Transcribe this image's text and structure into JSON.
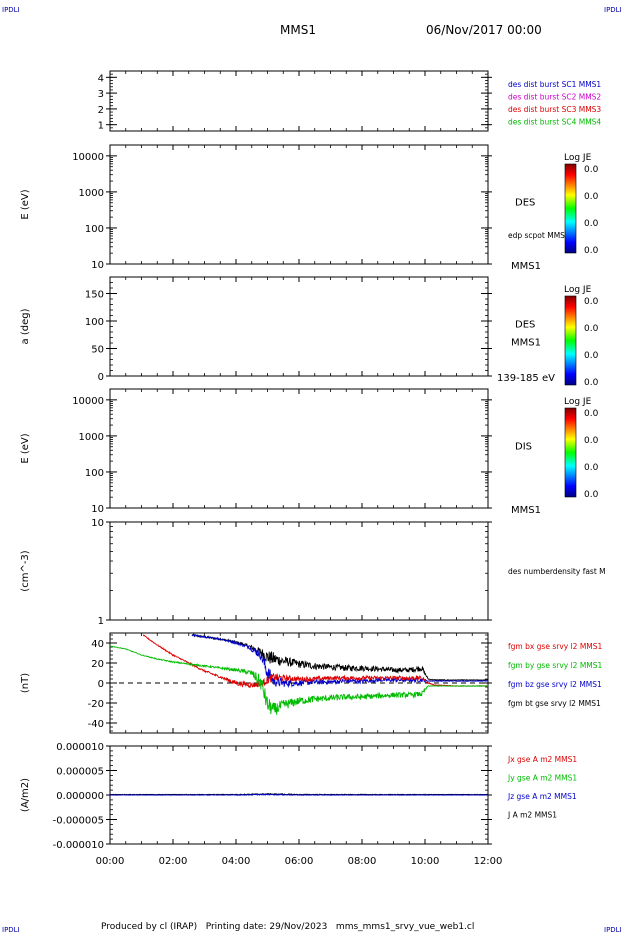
{
  "header": {
    "corner_left": "IPDLI",
    "corner_right": "IPDLI",
    "spacecraft": "MMS1",
    "datetime": "06/Nov/2017 00:00",
    "footer_text": "Produced by cl (IRAP)   Printing date: 29/Nov/2023   mms_mms1_srvy_vue_web1.cl",
    "footer_left": "IPDLI",
    "footer_right": "IPDLI"
  },
  "chart_data": [
    {
      "type": "line",
      "panel": "spacecraft-separation",
      "ylabel": "",
      "ylim": [
        0.6,
        4.4
      ],
      "yticks": [
        "1",
        "2",
        "3",
        "4"
      ],
      "legend": [
        {
          "name": "des dist burst SC1 MMS1",
          "color": "#0000cc"
        },
        {
          "name": "des dist burst SC2 MMS2",
          "color": "#cc00cc"
        },
        {
          "name": "des dist burst SC3 MMS3",
          "color": "#dd0000"
        },
        {
          "name": "des dist burst SC4 MMS4",
          "color": "#00bb00"
        }
      ]
    },
    {
      "type": "heatmap",
      "panel": "des-energy",
      "ylabel": "E (eV)",
      "yscale": "log",
      "ylim": [
        10,
        20000
      ],
      "yticks": [
        "10",
        "100",
        "1000",
        "10000"
      ],
      "right_label": "DES",
      "right_label2": "edp scpot MMS1",
      "right_bottom": "MMS1",
      "colorbar": {
        "title": "Log JE",
        "ticks": [
          "0.0",
          "0.0",
          "0.0",
          "0.0"
        ]
      }
    },
    {
      "type": "heatmap",
      "panel": "des-pitch",
      "ylabel": "a (deg)",
      "ylim": [
        0,
        180
      ],
      "yticks": [
        "0",
        "50",
        "100",
        "150"
      ],
      "right_label": "DES",
      "right_label2": "MMS1",
      "right_bottom": "139-185 eV",
      "colorbar": {
        "title": "Log JE",
        "ticks": [
          "0.0",
          "0.0",
          "0.0",
          "0.0"
        ]
      }
    },
    {
      "type": "heatmap",
      "panel": "dis-energy",
      "ylabel": "E (eV)",
      "yscale": "log",
      "ylim": [
        10,
        20000
      ],
      "yticks": [
        "10",
        "100",
        "1000",
        "10000"
      ],
      "right_label": "DIS",
      "right_bottom": "MMS1",
      "colorbar": {
        "title": "Log JE",
        "ticks": [
          "0.0",
          "0.0",
          "0.0",
          "0.0"
        ]
      }
    },
    {
      "type": "line",
      "panel": "density",
      "ylabel": "(cm^-3)",
      "yscale": "log",
      "ylim": [
        1,
        10
      ],
      "yticks": [
        "1",
        "10"
      ],
      "legend": [
        {
          "name": "des numberdensity fast M",
          "color": "#000000"
        }
      ]
    },
    {
      "type": "line",
      "panel": "magnetic-field",
      "ylabel": "(nT)",
      "ylim": [
        -50,
        50
      ],
      "yticks": [
        "-40",
        "-20",
        "0",
        "20",
        "40"
      ],
      "legend": [
        {
          "name": "fgm bx gse srvy l2 MMS1",
          "color": "#dd0000"
        },
        {
          "name": "fgm by gse srvy l2 MMS1",
          "color": "#00bb00"
        },
        {
          "name": "fgm bz gse srvy l2 MMS1",
          "color": "#0000cc"
        },
        {
          "name": "fgm bt gse srvy l2 MMS1",
          "color": "#000000"
        }
      ],
      "series": [
        {
          "name": "fgm bt gse srvy l2 MMS1",
          "color": "#000000",
          "x": [
            2.6,
            3.0,
            3.5,
            4.0,
            4.4,
            4.8,
            5.0,
            5.2,
            5.5,
            6.0,
            6.5,
            7.0,
            7.5,
            8.0,
            8.5,
            9.0,
            9.5,
            9.9,
            10.1,
            10.3,
            11.0,
            12.0
          ],
          "y": [
            48,
            46,
            44,
            41,
            37,
            31,
            26,
            24,
            22,
            19,
            17,
            16,
            15,
            15,
            14,
            13,
            13,
            15,
            4,
            3,
            3,
            3
          ],
          "noise": [
            1,
            1,
            1,
            1,
            1.5,
            4,
            7,
            7,
            5,
            4,
            3.5,
            3,
            3,
            3,
            2.5,
            2.5,
            2.5,
            3,
            0.5,
            0.5,
            0.3,
            0.3
          ]
        },
        {
          "name": "fgm bz gse srvy l2 MMS1",
          "color": "#0000cc",
          "x": [
            2.6,
            3.0,
            3.5,
            4.0,
            4.4,
            4.8,
            5.0,
            5.2,
            5.5,
            6.0,
            6.5,
            7.0,
            7.5,
            8.0,
            8.5,
            9.0,
            9.5,
            9.9,
            10.1,
            10.3,
            11.0,
            12.0
          ],
          "y": [
            48,
            46,
            44,
            40,
            36,
            28,
            10,
            2,
            0,
            0,
            1,
            1,
            2,
            2,
            3,
            3,
            3,
            3,
            2,
            2,
            2,
            2
          ],
          "noise": [
            0.8,
            0.8,
            0.8,
            1,
            1.5,
            5,
            8,
            6,
            4,
            3,
            2.5,
            2.5,
            2,
            2,
            2,
            2,
            2,
            2,
            0.3,
            0.3,
            0.3,
            0.3
          ]
        },
        {
          "name": "fgm bx gse srvy l2 MMS1",
          "color": "#dd0000",
          "x": [
            1.05,
            1.5,
            2.0,
            2.5,
            3.0,
            3.5,
            4.0,
            4.5,
            4.8,
            5.0,
            5.2,
            5.5,
            6.0,
            6.5,
            7.0,
            7.5,
            8.0,
            8.5,
            9.0,
            9.5,
            9.9,
            10.1,
            10.3,
            11.0,
            12.0
          ],
          "y": [
            48,
            38,
            28,
            20,
            12,
            6,
            0,
            -2,
            -1,
            3,
            6,
            5,
            4,
            4,
            5,
            5,
            5,
            5,
            5,
            5,
            5,
            0,
            -2,
            -3,
            -3
          ],
          "noise": [
            0.5,
            0.6,
            0.7,
            0.8,
            1,
            1.2,
            2.5,
            3,
            3,
            4,
            4,
            3,
            2.5,
            2.5,
            2,
            2,
            2,
            2,
            2,
            2,
            2,
            0.3,
            0.3,
            0.3,
            0.3
          ]
        },
        {
          "name": "fgm by gse srvy l2 MMS1",
          "color": "#00bb00",
          "x": [
            0.0,
            0.5,
            1.0,
            1.5,
            2.0,
            2.5,
            3.0,
            3.5,
            4.0,
            4.5,
            4.8,
            5.0,
            5.2,
            5.5,
            6.0,
            6.5,
            7.0,
            7.5,
            8.0,
            8.5,
            9.0,
            9.5,
            9.9,
            10.1,
            10.3,
            11.0,
            12.0
          ],
          "y": [
            37,
            34,
            28,
            24,
            21,
            19,
            17,
            15,
            13,
            10,
            0,
            -22,
            -27,
            -22,
            -18,
            -16,
            -15,
            -14,
            -14,
            -13,
            -12,
            -12,
            -11,
            -3,
            -3,
            -3,
            -3
          ],
          "noise": [
            0.3,
            0.3,
            0.4,
            0.5,
            0.6,
            0.7,
            0.8,
            1,
            1.5,
            3,
            8,
            8,
            7,
            5,
            4,
            3.5,
            3,
            3,
            3,
            2.5,
            2.5,
            2.5,
            2.5,
            0.3,
            0.3,
            0.3,
            0.3
          ]
        }
      ],
      "reference_line": {
        "y": 0,
        "style": "dashed"
      }
    },
    {
      "type": "line",
      "panel": "current-density",
      "ylabel": "(A/m2)",
      "ylim": [
        -1e-05,
        1e-05
      ],
      "yticks": [
        "-0.000010",
        "-0.000005",
        "0.000000",
        "0.000005",
        "0.000010"
      ],
      "legend": [
        {
          "name": "Jx gse A m2 MMS1",
          "color": "#dd0000"
        },
        {
          "name": "Jy gse A m2 MMS1",
          "color": "#00bb00"
        },
        {
          "name": "Jz gse A m2 MMS1",
          "color": "#0000cc"
        },
        {
          "name": "J A m2 MMS1",
          "color": "#000000"
        }
      ],
      "series": [
        {
          "name": "J A m2 MMS1",
          "color": "#000000",
          "x": [
            0,
            1,
            2,
            3,
            4,
            5,
            6,
            7,
            8,
            9,
            9.9,
            10.3,
            10.4,
            12
          ],
          "y": [
            1e-07,
            1e-07,
            1e-07,
            1e-07,
            1e-07,
            2e-07,
            1e-07,
            1e-07,
            1e-07,
            1e-07,
            1e-07,
            1e-07,
            1e-07,
            1e-07
          ],
          "noise": [
            5e-08,
            5e-08,
            5e-08,
            5e-08,
            8e-08,
            1.2e-07,
            8e-08,
            6e-08,
            6e-08,
            6e-08,
            6e-08,
            5e-08,
            5e-08,
            5e-08
          ]
        },
        {
          "name": "Jz gse A m2 MMS1",
          "color": "#0000cc",
          "x": [
            0,
            2,
            4,
            5,
            6,
            8,
            10,
            10.4,
            12
          ],
          "y": [
            0,
            0,
            0,
            1e-07,
            0,
            0,
            0,
            0,
            0
          ],
          "noise": [
            4e-08,
            4e-08,
            6e-08,
            1e-07,
            6e-08,
            5e-08,
            5e-08,
            4e-08,
            4e-08
          ]
        }
      ]
    }
  ],
  "xaxis": {
    "xlim": [
      0,
      12
    ],
    "ticks": [
      "00:00",
      "02:00",
      "04:00",
      "06:00",
      "08:00",
      "10:00",
      "12:00"
    ]
  }
}
